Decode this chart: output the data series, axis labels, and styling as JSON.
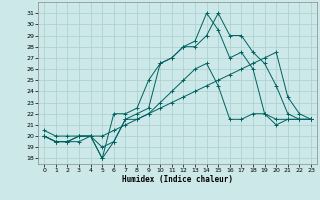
{
  "xlabel": "Humidex (Indice chaleur)",
  "background_color": "#cce8e8",
  "grid_color": "#aacece",
  "line_color": "#006060",
  "x_ticks": [
    0,
    1,
    2,
    3,
    4,
    5,
    6,
    7,
    8,
    9,
    10,
    11,
    12,
    13,
    14,
    15,
    16,
    17,
    18,
    19,
    20,
    21,
    22,
    23
  ],
  "y_ticks": [
    18,
    19,
    20,
    21,
    22,
    23,
    24,
    25,
    26,
    27,
    28,
    29,
    30,
    31
  ],
  "ylim": [
    17.5,
    32.0
  ],
  "xlim": [
    -0.5,
    23.5
  ],
  "series": [
    [
      20.0,
      19.5,
      19.5,
      20.0,
      20.0,
      19.0,
      19.5,
      21.5,
      21.5,
      22.0,
      23.0,
      24.0,
      25.0,
      26.0,
      26.5,
      24.5,
      21.5,
      21.5,
      22.0,
      22.0,
      21.0,
      21.5,
      21.5,
      21.5
    ],
    [
      20.0,
      19.5,
      19.5,
      20.0,
      20.0,
      18.0,
      19.5,
      21.5,
      22.0,
      22.5,
      26.5,
      27.0,
      28.0,
      28.0,
      29.0,
      31.0,
      29.0,
      29.0,
      27.5,
      26.5,
      24.5,
      22.0,
      21.5,
      21.5
    ],
    [
      20.0,
      19.5,
      19.5,
      19.5,
      20.0,
      18.0,
      22.0,
      22.0,
      22.5,
      25.0,
      26.5,
      27.0,
      28.0,
      28.5,
      31.0,
      29.5,
      27.0,
      27.5,
      26.0,
      22.0,
      21.5,
      21.5,
      21.5,
      21.5
    ],
    [
      20.5,
      20.0,
      20.0,
      20.0,
      20.0,
      20.0,
      20.5,
      21.0,
      21.5,
      22.0,
      22.5,
      23.0,
      23.5,
      24.0,
      24.5,
      25.0,
      25.5,
      26.0,
      26.5,
      27.0,
      27.5,
      23.5,
      22.0,
      21.5
    ]
  ]
}
